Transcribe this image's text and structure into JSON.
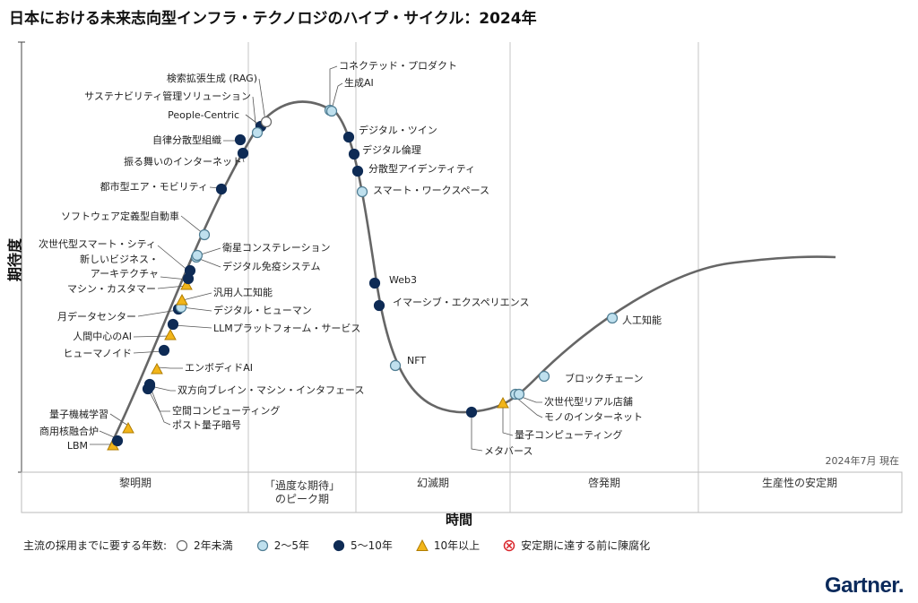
{
  "title": "日本における未来志向型インフラ・テクノロジのハイプ・サイクル：2024年",
  "brand": "Gartner.",
  "as_of": "2024年7月 現在",
  "colors": {
    "curve": "#666666",
    "less_than_2": "#ffffff",
    "two_to_five": "#bfe0ee",
    "five_to_ten": "#0e2b55",
    "more_than_10": "#f2b51a",
    "obsolete": "#d9262c"
  },
  "legend": {
    "title": "主流の採用までに要する年数:",
    "items": [
      {
        "key": "less_than_2",
        "label": "2年未満",
        "shape": "circle-white"
      },
      {
        "key": "two_to_five",
        "label": "2～5年",
        "shape": "circle-light"
      },
      {
        "key": "five_to_ten",
        "label": "5～10年",
        "shape": "circle-dark"
      },
      {
        "key": "more_than_10",
        "label": "10年以上",
        "shape": "triangle"
      },
      {
        "key": "obsolete",
        "label": "安定期に達する前に陳腐化",
        "shape": "cross"
      }
    ]
  },
  "chart_data": {
    "type": "scatter",
    "title": "日本における未来志向型インフラ・テクノロジのハイプ・サイクル：2024年",
    "xlabel": "時間",
    "ylabel": "期待度",
    "phases": [
      "黎明期",
      "「過度な期待」\nのピーク期",
      "幻滅期",
      "啓発期",
      "生産性の安定期"
    ],
    "technologies": [
      {
        "name": "LBM",
        "phase": "黎明期",
        "category": "more_than_10"
      },
      {
        "name": "商用核融合炉",
        "phase": "黎明期",
        "category": "five_to_ten"
      },
      {
        "name": "量子機械学習",
        "phase": "黎明期",
        "category": "more_than_10"
      },
      {
        "name": "ポスト量子暗号",
        "phase": "黎明期",
        "category": "five_to_ten"
      },
      {
        "name": "空間コンピューティング",
        "phase": "黎明期",
        "category": "five_to_ten"
      },
      {
        "name": "双方向ブレイン・マシン・インタフェース",
        "phase": "黎明期",
        "category": "five_to_ten"
      },
      {
        "name": "エンボディドAI",
        "phase": "黎明期",
        "category": "more_than_10"
      },
      {
        "name": "ヒューマノイド",
        "phase": "黎明期",
        "category": "five_to_ten"
      },
      {
        "name": "人間中心のAI",
        "phase": "黎明期",
        "category": "more_than_10"
      },
      {
        "name": "LLMプラットフォーム・サービス",
        "phase": "黎明期",
        "category": "five_to_ten"
      },
      {
        "name": "月データセンター",
        "phase": "黎明期",
        "category": "five_to_ten"
      },
      {
        "name": "デジタル・ヒューマン",
        "phase": "黎明期",
        "category": "two_to_five"
      },
      {
        "name": "汎用人工知能",
        "phase": "黎明期",
        "category": "more_than_10"
      },
      {
        "name": "マシン・カスタマー",
        "phase": "黎明期",
        "category": "more_than_10"
      },
      {
        "name": "新しいビジネス・アーキテクチャ",
        "phase": "黎明期",
        "category": "five_to_ten"
      },
      {
        "name": "デジタル免疫システム",
        "phase": "黎明期",
        "category": "two_to_five"
      },
      {
        "name": "次世代型スマート・シティ",
        "phase": "黎明期",
        "category": "five_to_ten"
      },
      {
        "name": "衛星コンステレーション",
        "phase": "黎明期",
        "category": "two_to_five"
      },
      {
        "name": "ソフトウェア定義型自動車",
        "phase": "黎明期",
        "category": "two_to_five"
      },
      {
        "name": "都市型エア・モビリティ",
        "phase": "黎明期",
        "category": "five_to_ten"
      },
      {
        "name": "振る舞いのインターネット",
        "phase": "黎明期",
        "category": "five_to_ten"
      },
      {
        "name": "自律分散型組織",
        "phase": "黎明期",
        "category": "five_to_ten"
      },
      {
        "name": "People-Centric",
        "phase": "「過度な期待」のピーク期",
        "category": "five_to_ten"
      },
      {
        "name": "サステナビリティ管理ソリューション",
        "phase": "「過度な期待」のピーク期",
        "category": "two_to_five"
      },
      {
        "name": "検索拡張生成 (RAG)",
        "phase": "「過度な期待」のピーク期",
        "category": "less_than_2"
      },
      {
        "name": "コネクテッド・プロダクト",
        "phase": "「過度な期待」のピーク期",
        "category": "two_to_five"
      },
      {
        "name": "生成AI",
        "phase": "「過度な期待」のピーク期",
        "category": "two_to_five"
      },
      {
        "name": "デジタル・ツイン",
        "phase": "幻滅期",
        "category": "five_to_ten"
      },
      {
        "name": "デジタル倫理",
        "phase": "幻滅期",
        "category": "five_to_ten"
      },
      {
        "name": "分散型アイデンティティ",
        "phase": "幻滅期",
        "category": "five_to_ten"
      },
      {
        "name": "スマート・ワークスペース",
        "phase": "幻滅期",
        "category": "two_to_five"
      },
      {
        "name": "Web3",
        "phase": "幻滅期",
        "category": "five_to_ten"
      },
      {
        "name": "イマーシブ・エクスペリエンス",
        "phase": "幻滅期",
        "category": "five_to_ten"
      },
      {
        "name": "NFT",
        "phase": "幻滅期",
        "category": "two_to_five"
      },
      {
        "name": "メタバース",
        "phase": "幻滅期",
        "category": "five_to_ten"
      },
      {
        "name": "量子コンピューティング",
        "phase": "幻滅期",
        "category": "more_than_10"
      },
      {
        "name": "モノのインターネット",
        "phase": "啓発期",
        "category": "two_to_five"
      },
      {
        "name": "次世代型リアル店舗",
        "phase": "啓発期",
        "category": "two_to_five"
      },
      {
        "name": "ブロックチェーン",
        "phase": "啓発期",
        "category": "two_to_five"
      },
      {
        "name": "人工知能",
        "phase": "啓発期",
        "category": "two_to_five"
      }
    ]
  }
}
